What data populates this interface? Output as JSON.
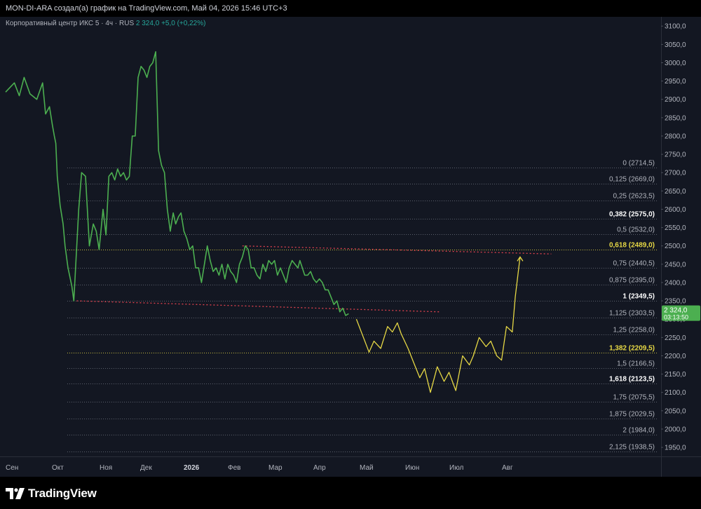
{
  "header": {
    "attribution": "MON-DI-ARA создал(а) график на TradingView.com, Май 04, 2026 15:46 UTC+3"
  },
  "legend": {
    "symbol": "Корпоративный центр ИКС 5 · 4ч · RUS",
    "price": "2 324,0",
    "change": "+5,0 (+0,22%)"
  },
  "footer": {
    "brand": "TradingView"
  },
  "colors": {
    "background": "#131722",
    "price_line": "#4caf50",
    "projection": "#e6d845",
    "fib_line": "#8a8f9c",
    "fib_highlight": "#e6d845",
    "trend_dotted": "#e0424e"
  },
  "chart_data": {
    "type": "line",
    "ylim": [
      1910,
      3110
    ],
    "y_ticks": [
      1950,
      2000,
      2050,
      2100,
      2150,
      2200,
      2250,
      2300,
      2350,
      2400,
      2450,
      2500,
      2550,
      2600,
      2650,
      2700,
      2750,
      2800,
      2850,
      2900,
      2950,
      3000,
      3050,
      3100
    ],
    "y_tick_labels": [
      "1950,0",
      "2000,0",
      "2050,0",
      "2100,0",
      "2150,0",
      "2200,0",
      "2250,0",
      "2300,0",
      "2350,0",
      "2400,0",
      "2450,0",
      "2500,0",
      "2550,0",
      "2600,0",
      "2650,0",
      "2700,0",
      "2750,0",
      "2800,0",
      "2850,0",
      "2900,0",
      "2950,0",
      "3000,0",
      "3050,0",
      "3100,0"
    ],
    "x_ticks": [
      {
        "label": "Сен",
        "bold": false
      },
      {
        "label": "Окт",
        "bold": false
      },
      {
        "label": "Ноя",
        "bold": false
      },
      {
        "label": "Дек",
        "bold": false
      },
      {
        "label": "2026",
        "bold": true
      },
      {
        "label": "Фев",
        "bold": false
      },
      {
        "label": "Мар",
        "bold": false
      },
      {
        "label": "Апр",
        "bold": false
      },
      {
        "label": "Май",
        "bold": false
      },
      {
        "label": "Июн",
        "bold": false
      },
      {
        "label": "Июл",
        "bold": false
      },
      {
        "label": "Авг",
        "bold": false
      }
    ],
    "price_series": {
      "name": "",
      "t": [
        0.0,
        0.9,
        1.4,
        1.9,
        2.5,
        3.2,
        3.8,
        4.1,
        4.5,
        4.8,
        5.0,
        5.15,
        5.3,
        5.6,
        5.9,
        6.1,
        6.4,
        6.8,
        7.0,
        7.2,
        7.5,
        7.8,
        8.2,
        8.6,
        9.0,
        9.3,
        9.6,
        10.0,
        10.3,
        10.6,
        10.9,
        11.2,
        11.5,
        11.8,
        12.1,
        12.4,
        12.7,
        13.0,
        13.3,
        13.6,
        13.9,
        14.2,
        14.5,
        14.8,
        15.1,
        15.4,
        15.7,
        16.0,
        16.3,
        16.6,
        16.9,
        17.2,
        17.45,
        17.75,
        18.0,
        18.3,
        18.6,
        18.9,
        19.2,
        19.5,
        19.8,
        20.1,
        20.4,
        20.7,
        21.0,
        21.3,
        21.6,
        21.9,
        22.2,
        22.5,
        22.8,
        23.1,
        23.4,
        23.7,
        24.0,
        24.3,
        24.6,
        24.9,
        25.2,
        25.5,
        25.8,
        26.1,
        26.4,
        26.7,
        27.0,
        27.3,
        27.6,
        27.9,
        28.2,
        28.5,
        28.8,
        29.1,
        29.4,
        29.7,
        30.0,
        30.2,
        30.45,
        30.7,
        31.0,
        31.3,
        31.6,
        31.9,
        32.2,
        32.5,
        32.8,
        33.1,
        33.4,
        33.7,
        34.0,
        34.3,
        34.6,
        34.9,
        35.2
      ],
      "values": [
        2920,
        2945,
        2910,
        2960,
        2915,
        2900,
        2945,
        2860,
        2880,
        2830,
        2800,
        2780,
        2690,
        2610,
        2560,
        2500,
        2440,
        2390,
        2350,
        2450,
        2600,
        2700,
        2690,
        2500,
        2560,
        2540,
        2490,
        2600,
        2530,
        2690,
        2700,
        2680,
        2710,
        2690,
        2700,
        2680,
        2690,
        2800,
        2800,
        2960,
        2990,
        2980,
        2960,
        2990,
        3000,
        3030,
        2760,
        2720,
        2700,
        2600,
        2540,
        2590,
        2560,
        2580,
        2590,
        2540,
        2520,
        2490,
        2500,
        2440,
        2440,
        2400,
        2450,
        2500,
        2460,
        2430,
        2440,
        2420,
        2450,
        2410,
        2450,
        2430,
        2420,
        2400,
        2450,
        2470,
        2500,
        2490,
        2440,
        2440,
        2420,
        2410,
        2450,
        2430,
        2460,
        2450,
        2460,
        2420,
        2440,
        2420,
        2400,
        2440,
        2460,
        2450,
        2440,
        2460,
        2440,
        2420,
        2420,
        2430,
        2410,
        2400,
        2410,
        2400,
        2380,
        2380,
        2360,
        2340,
        2350,
        2320,
        2330,
        2310,
        2315
      ]
    },
    "projection_series": {
      "name": "",
      "points": [
        {
          "t": 36.0,
          "v": 2300
        },
        {
          "t": 37.3,
          "v": 2210
        },
        {
          "t": 37.8,
          "v": 2240
        },
        {
          "t": 38.5,
          "v": 2220
        },
        {
          "t": 39.2,
          "v": 2280
        },
        {
          "t": 39.7,
          "v": 2265
        },
        {
          "t": 40.2,
          "v": 2290
        },
        {
          "t": 40.6,
          "v": 2260
        },
        {
          "t": 41.3,
          "v": 2220
        },
        {
          "t": 41.9,
          "v": 2180
        },
        {
          "t": 42.5,
          "v": 2140
        },
        {
          "t": 43.0,
          "v": 2165
        },
        {
          "t": 43.6,
          "v": 2100
        },
        {
          "t": 44.3,
          "v": 2170
        },
        {
          "t": 45.0,
          "v": 2130
        },
        {
          "t": 45.5,
          "v": 2155
        },
        {
          "t": 46.2,
          "v": 2105
        },
        {
          "t": 46.9,
          "v": 2200
        },
        {
          "t": 47.6,
          "v": 2175
        },
        {
          "t": 48.0,
          "v": 2200
        },
        {
          "t": 48.6,
          "v": 2250
        },
        {
          "t": 49.3,
          "v": 2225
        },
        {
          "t": 49.8,
          "v": 2240
        },
        {
          "t": 50.4,
          "v": 2200
        },
        {
          "t": 50.9,
          "v": 2188
        },
        {
          "t": 51.4,
          "v": 2280
        },
        {
          "t": 52.0,
          "v": 2265
        },
        {
          "t": 52.3,
          "v": 2360
        },
        {
          "t": 52.8,
          "v": 2470
        }
      ]
    },
    "trend_lines": [
      {
        "from": {
          "t": 7.3,
          "v": 2350
        },
        "to": {
          "t": 44.5,
          "v": 2320
        }
      },
      {
        "from": {
          "t": 24.3,
          "v": 2500
        },
        "to": {
          "t": 56.0,
          "v": 2478
        }
      }
    ],
    "fib_levels": [
      {
        "ratio": "0",
        "price": 2714.5,
        "label": "0 (2714,5)",
        "style": "normal"
      },
      {
        "ratio": "0,125",
        "price": 2669.0,
        "label": "0,125 (2669,0)",
        "style": "normal"
      },
      {
        "ratio": "0,25",
        "price": 2623.5,
        "label": "0,25 (2623,5)",
        "style": "normal"
      },
      {
        "ratio": "0,382",
        "price": 2575.0,
        "label": "0,382 (2575,0)",
        "style": "bold"
      },
      {
        "ratio": "0,5",
        "price": 2532.0,
        "label": "0,5 (2532,0)",
        "style": "normal"
      },
      {
        "ratio": "0,618",
        "price": 2489.0,
        "label": "0,618 (2489,0)",
        "style": "highlight"
      },
      {
        "ratio": "0,75",
        "price": 2440.5,
        "label": "0,75 (2440,5)",
        "style": "normal"
      },
      {
        "ratio": "0,875",
        "price": 2395.0,
        "label": "0,875 (2395,0)",
        "style": "normal"
      },
      {
        "ratio": "1",
        "price": 2349.5,
        "label": "1 (2349,5)",
        "style": "bold"
      },
      {
        "ratio": "1,125",
        "price": 2303.5,
        "label": "1,125 (2303,5)",
        "style": "normal"
      },
      {
        "ratio": "1,25",
        "price": 2258.0,
        "label": "1,25 (2258,0)",
        "style": "normal"
      },
      {
        "ratio": "1,382",
        "price": 2209.5,
        "label": "1,382 (2209,5)",
        "style": "highlight"
      },
      {
        "ratio": "1,5",
        "price": 2166.5,
        "label": "1,5 (2166,5)",
        "style": "normal"
      },
      {
        "ratio": "1,618",
        "price": 2123.5,
        "label": "1,618 (2123,5)",
        "style": "bold"
      },
      {
        "ratio": "1,75",
        "price": 2075.5,
        "label": "1,75 (2075,5)",
        "style": "normal"
      },
      {
        "ratio": "1,875",
        "price": 2029.5,
        "label": "1,875 (2029,5)",
        "style": "normal"
      },
      {
        "ratio": "2",
        "price": 1984.0,
        "label": "2 (1984,0)",
        "style": "normal"
      },
      {
        "ratio": "2,125",
        "price": 1938.5,
        "label": "2,125 (1938,5)",
        "style": "normal"
      }
    ],
    "current_price": {
      "value": 2324.0,
      "label": "2 324,0",
      "countdown": "03:13:50"
    },
    "grid": false
  }
}
